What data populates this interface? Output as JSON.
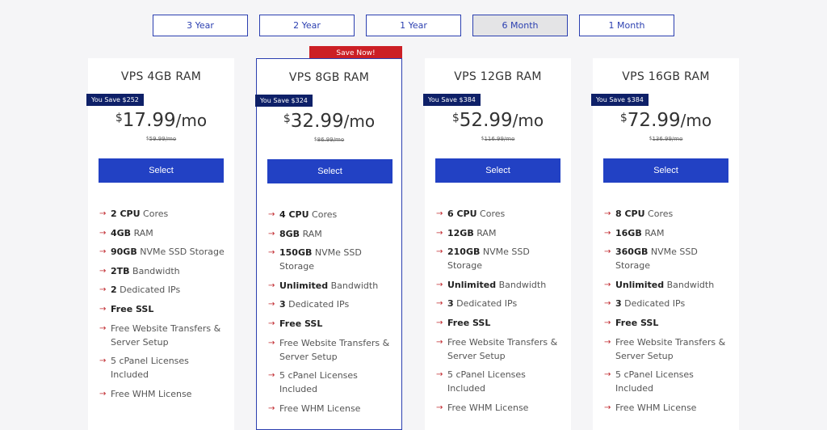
{
  "tabs": [
    {
      "label": "3 Year",
      "active": false
    },
    {
      "label": "2 Year",
      "active": false
    },
    {
      "label": "1 Year",
      "active": false
    },
    {
      "label": "6 Month",
      "active": true
    },
    {
      "label": "1 Month",
      "active": false
    }
  ],
  "save_now_label": "Save Now!",
  "plans": [
    {
      "title": "VPS 4GB RAM",
      "badge": "You Save $252",
      "currency": "$",
      "amount": "17.99",
      "per": "/mo",
      "old_currency": "$",
      "old_price": "59.99/mo",
      "button": "Select",
      "features": [
        {
          "bold": "2 CPU",
          "text": " Cores"
        },
        {
          "bold": "4GB",
          "text": " RAM"
        },
        {
          "bold": "90GB",
          "text": " NVMe SSD Storage"
        },
        {
          "bold": "2TB",
          "text": " Bandwidth"
        },
        {
          "bold": "2",
          "text": " Dedicated IPs"
        },
        {
          "bold": "Free SSL",
          "text": ""
        },
        {
          "bold": "",
          "text": "Free Website Transfers & Server Setup"
        },
        {
          "bold": "",
          "text": "5 cPanel Licenses Included"
        },
        {
          "bold": "",
          "text": "Free WHM License"
        }
      ]
    },
    {
      "title": "VPS 8GB RAM",
      "badge": "You Save $324",
      "currency": "$",
      "amount": "32.99",
      "per": "/mo",
      "old_currency": "$",
      "old_price": "86.99/mo",
      "button": "Select",
      "features": [
        {
          "bold": "4 CPU",
          "text": " Cores"
        },
        {
          "bold": "8GB",
          "text": " RAM"
        },
        {
          "bold": "150GB",
          "text": " NVMe SSD Storage"
        },
        {
          "bold": "Unlimited",
          "text": " Bandwidth"
        },
        {
          "bold": "3",
          "text": " Dedicated IPs"
        },
        {
          "bold": "Free SSL",
          "text": ""
        },
        {
          "bold": "",
          "text": "Free Website Transfers & Server Setup"
        },
        {
          "bold": "",
          "text": "5 cPanel Licenses Included"
        },
        {
          "bold": "",
          "text": "Free WHM License"
        }
      ]
    },
    {
      "title": "VPS 12GB RAM",
      "badge": "You Save $384",
      "currency": "$",
      "amount": "52.99",
      "per": "/mo",
      "old_currency": "$",
      "old_price": "116.99/mo",
      "button": "Select",
      "features": [
        {
          "bold": "6 CPU",
          "text": " Cores"
        },
        {
          "bold": "12GB",
          "text": " RAM"
        },
        {
          "bold": "210GB",
          "text": " NVMe SSD Storage"
        },
        {
          "bold": "Unlimited",
          "text": " Bandwidth"
        },
        {
          "bold": "3",
          "text": " Dedicated IPs"
        },
        {
          "bold": "Free SSL",
          "text": ""
        },
        {
          "bold": "",
          "text": "Free Website Transfers & Server Setup"
        },
        {
          "bold": "",
          "text": "5 cPanel Licenses Included"
        },
        {
          "bold": "",
          "text": "Free WHM License"
        }
      ]
    },
    {
      "title": "VPS 16GB RAM",
      "badge": "You Save $384",
      "currency": "$",
      "amount": "72.99",
      "per": "/mo",
      "old_currency": "$",
      "old_price": "136.99/mo",
      "button": "Select",
      "features": [
        {
          "bold": "8 CPU",
          "text": " Cores"
        },
        {
          "bold": "16GB",
          "text": " RAM"
        },
        {
          "bold": "360GB",
          "text": " NVMe SSD Storage"
        },
        {
          "bold": "Unlimited",
          "text": " Bandwidth"
        },
        {
          "bold": "3",
          "text": " Dedicated IPs"
        },
        {
          "bold": "Free SSL",
          "text": ""
        },
        {
          "bold": "",
          "text": "Free Website Transfers & Server Setup"
        },
        {
          "bold": "",
          "text": "5 cPanel Licenses Included"
        },
        {
          "bold": "",
          "text": "Free WHM License"
        }
      ]
    }
  ],
  "colors": {
    "accent": "#2241c4",
    "badge": "#0e2068",
    "save_now": "#cc1f25",
    "arrow": "#c0282e"
  },
  "icons": {
    "feature_bullet": "arrow-right-icon"
  }
}
